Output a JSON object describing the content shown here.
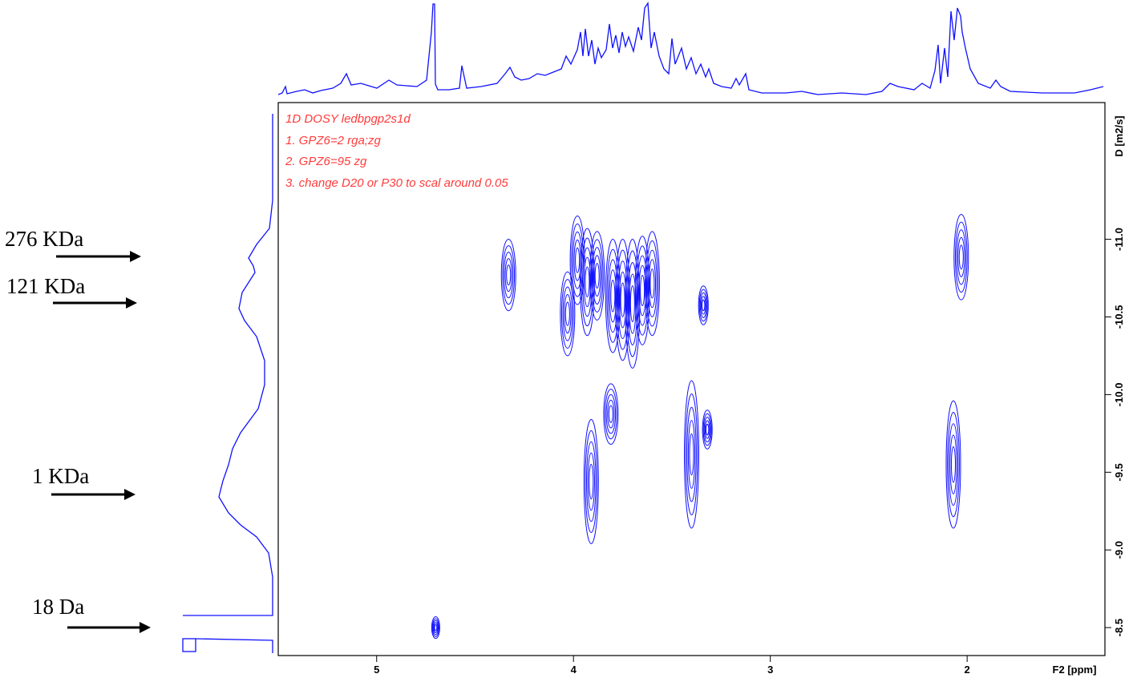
{
  "chart_data": {
    "type": "dosy",
    "x_label": "F2 [ppm]",
    "y_label": "D [m2/s]",
    "annotations": [
      "1D DOSY ledbpgp2s1d",
      "1. GPZ6=2  rga;zg",
      "2. GPZ6=95 zg",
      "3. change D20 or P30  to scal around 0.05"
    ],
    "side_labels": [
      "276 KDa",
      "121 KDa",
      "1 KDa",
      "18 Da"
    ],
    "color": "#1010ff",
    "xlim": [
      5.5,
      1.3
    ],
    "xticks": [
      5,
      4,
      3,
      2
    ],
    "ylim": [
      -8.32,
      -11.88
    ],
    "yticks": [
      {
        "value": -11,
        "label": "-11.0"
      },
      -10.5,
      {
        "value": -10,
        "label": "-10.0"
      },
      -9.5,
      {
        "value": -9,
        "label": "-9.0"
      },
      -8.5
    ],
    "peaks": [
      {
        "x": 4.7,
        "y": [
          -8.43,
          -8.57
        ]
      },
      {
        "x": 4.33,
        "y": [
          -10.54,
          -11.0
        ]
      },
      {
        "x": 4.03,
        "y": [
          -10.25,
          -10.79
        ]
      },
      {
        "x": 3.98,
        "y": [
          -10.58,
          -11.15
        ]
      },
      {
        "x": 3.93,
        "y": [
          -10.38,
          -11.07
        ]
      },
      {
        "x": 3.88,
        "y": [
          -10.48,
          -11.05
        ]
      },
      {
        "x": 3.8,
        "y": [
          -10.27,
          -11.0
        ]
      },
      {
        "x": 3.75,
        "y": [
          -10.22,
          -11.0
        ]
      },
      {
        "x": 3.7,
        "y": [
          -10.17,
          -11.0
        ]
      },
      {
        "x": 3.65,
        "y": [
          -10.32,
          -11.02
        ]
      },
      {
        "x": 3.6,
        "y": [
          -10.38,
          -11.05
        ]
      },
      {
        "x": 3.34,
        "y": [
          -10.45,
          -10.7
        ]
      },
      {
        "x": 2.03,
        "y": [
          -10.61,
          -11.16
        ]
      },
      {
        "x": 3.91,
        "y": [
          -9.04,
          -9.84
        ]
      },
      {
        "x": 3.81,
        "y": [
          -9.68,
          -10.07
        ]
      },
      {
        "x": 3.4,
        "y": [
          -9.14,
          -10.09
        ]
      },
      {
        "x": 3.32,
        "y": [
          -9.65,
          -9.9
        ]
      },
      {
        "x": 2.07,
        "y": [
          -9.14,
          -9.96
        ]
      }
    ]
  }
}
